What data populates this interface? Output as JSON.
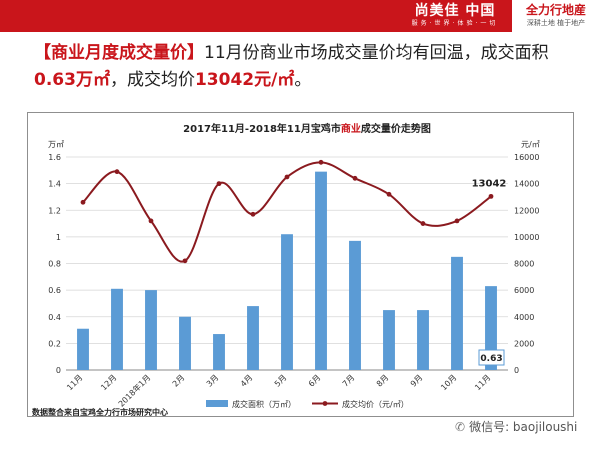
{
  "header": {
    "brand_left": "尚美佳 中国",
    "brand_left_sub": "服务·世界·体验·一切",
    "brand_right": "全力行地産",
    "brand_right_sub": "深耕土地 植于地产",
    "bar_color": "#c9151b"
  },
  "headline": {
    "tag": "【商业月度成交量价】",
    "text1": "11月份商业市场成交量价均有回温，成交面积",
    "area_value": "0.63万㎡",
    "text2": "，成交均价",
    "price_value": "13042元/㎡",
    "text3": "。"
  },
  "chart_data": {
    "type": "bar+line",
    "title": "2017年11月-2018年11月宝鸡市商业成交量价走势图",
    "title_prefix": "2017年11月-2018年11月宝鸡市",
    "title_highlight": "商业",
    "title_suffix": "成交量价走势图",
    "categories": [
      "11月",
      "12月",
      "2018年1月",
      "2月",
      "3月",
      "4月",
      "5月",
      "6月",
      "7月",
      "8月",
      "9月",
      "10月",
      "11月"
    ],
    "series": [
      {
        "name": "成交面积（万㎡）",
        "type": "bar",
        "axis": "left",
        "color": "#5b9bd5",
        "values": [
          0.31,
          0.61,
          0.6,
          0.4,
          0.27,
          0.48,
          1.02,
          1.49,
          0.97,
          0.45,
          0.45,
          0.85,
          0.63
        ]
      },
      {
        "name": "成交均价（元/㎡）",
        "type": "line",
        "axis": "right",
        "color": "#8b1a1f",
        "values": [
          12600,
          14900,
          11200,
          8200,
          14000,
          11700,
          14500,
          15600,
          14400,
          13200,
          11000,
          11200,
          13042
        ]
      }
    ],
    "y_left": {
      "unit": "万㎡",
      "min": 0,
      "max": 1.6,
      "ticks": [
        "0",
        "0.2",
        "0.4",
        "0.6",
        "0.8",
        "1",
        "1.2",
        "1.4",
        "1.6"
      ]
    },
    "y_right": {
      "unit": "元/㎡",
      "min": 0,
      "max": 16000,
      "ticks": [
        "0",
        "2000",
        "4000",
        "6000",
        "8000",
        "10000",
        "12000",
        "14000",
        "16000"
      ]
    },
    "annotations": [
      {
        "series": 1,
        "index": 12,
        "text": "13042"
      },
      {
        "series": 0,
        "index": 12,
        "text": "0.63"
      }
    ],
    "legend_position": "bottom",
    "source": "数据整合来自宝鸡全力行市场研究中心"
  },
  "footer": {
    "wechat": "微信号: baojiloushi"
  }
}
